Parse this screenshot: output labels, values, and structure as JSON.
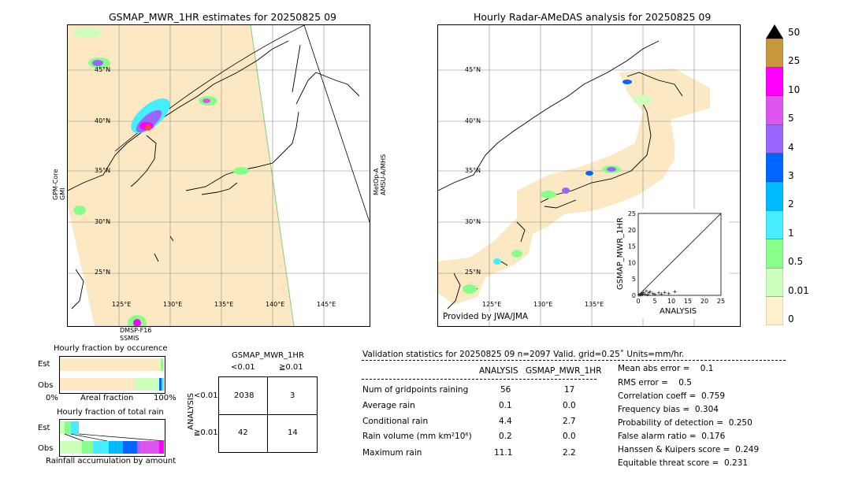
{
  "left_map": {
    "title": "GSMAP_MWR_1HR estimates for 20250825 09",
    "lat_labels": [
      "45°N",
      "40°N",
      "35°N",
      "30°N",
      "25°N"
    ],
    "lon_labels": [
      "125°E",
      "130°E",
      "135°E",
      "140°E",
      "145°E"
    ],
    "left_sensor": "GPM-Core\nGMI",
    "right_sensor": "MetOp-A\nAMSU-A/MHS",
    "bottom_sensor": "DMSP-F16\nSSMIS"
  },
  "right_map": {
    "title": "Hourly Radar-AMeDAS analysis for 20250825 09",
    "lat_labels": [
      "45°N",
      "40°N",
      "35°N",
      "30°N",
      "25°N"
    ],
    "lon_labels": [
      "125°E",
      "130°E",
      "135°E"
    ],
    "credit": "Provided by JWA/JMA"
  },
  "colorbar": {
    "labels": [
      "50",
      "25",
      "10",
      "5",
      "4",
      "3",
      "2",
      "1",
      "0.5",
      "0.01",
      "0"
    ],
    "colors": [
      "#c8963c",
      "#ff00ff",
      "#dd55ee",
      "#9966ff",
      "#0066ff",
      "#00bbff",
      "#44eeff",
      "#88ff88",
      "#ccffbb",
      "#fff0cc"
    ]
  },
  "chart_data": [
    {
      "type": "scatter",
      "xlabel": "ANALYSIS",
      "ylabel": "GSMAP_MWR_1HR",
      "xlim": [
        0,
        25
      ],
      "ylim": [
        0,
        25
      ],
      "xticks": [
        "0",
        "5",
        "10",
        "15",
        "20",
        "25"
      ],
      "yticks": [
        "0",
        "5",
        "10",
        "15",
        "20",
        "25"
      ],
      "points": [
        [
          0.2,
          0.1
        ],
        [
          0.5,
          0.3
        ],
        [
          0.8,
          0.2
        ],
        [
          1.0,
          0.6
        ],
        [
          1.3,
          0.4
        ],
        [
          1.6,
          1.0
        ],
        [
          2.0,
          0.5
        ],
        [
          2.4,
          1.4
        ],
        [
          2.8,
          0.3
        ],
        [
          3.2,
          0.8
        ],
        [
          3.6,
          1.2
        ],
        [
          4.4,
          0.6
        ],
        [
          5.0,
          0.4
        ],
        [
          6.2,
          0.9
        ],
        [
          7.0,
          0.5
        ],
        [
          8.0,
          1.0
        ],
        [
          9.2,
          0.6
        ],
        [
          11.1,
          1.2
        ]
      ]
    },
    {
      "type": "bar",
      "title": "Hourly fraction by occurence",
      "rows": [
        "Est",
        "Obs"
      ],
      "xlabels": [
        "0%",
        "Areal fraction",
        "100%"
      ]
    },
    {
      "type": "bar",
      "title": "Hourly fraction of total rain",
      "rows": [
        "Est",
        "Obs"
      ],
      "xlabel": "Rainfall accumulation by amount"
    },
    {
      "type": "table",
      "title": "GSMAP_MWR_1HR",
      "col_headers": [
        "<0.01",
        "≧0.01"
      ],
      "row_headers": [
        "<0.01",
        "≧0.01"
      ],
      "side_label": "ANALYSIS",
      "cells": [
        [
          "2038",
          "3"
        ],
        [
          "42",
          "14"
        ]
      ]
    }
  ],
  "validation": {
    "header": "Validation statistics for 20250825 09  n=2097 Valid. grid=0.25˚ Units=mm/hr.",
    "col_analysis": "ANALYSIS",
    "col_gsmap": "GSMAP_MWR_1HR",
    "rows": [
      {
        "label": "Num of gridpoints raining",
        "analysis": "56",
        "gsmap": "17"
      },
      {
        "label": "Average rain",
        "analysis": "0.1",
        "gsmap": "0.0"
      },
      {
        "label": "Conditional rain",
        "analysis": "4.4",
        "gsmap": "2.7"
      },
      {
        "label": "Rain volume (mm km²10⁶)",
        "analysis": "0.2",
        "gsmap": "0.0"
      },
      {
        "label": "Maximum rain",
        "analysis": "11.1",
        "gsmap": "2.2"
      }
    ],
    "scores": [
      "Mean abs error =    0.1",
      "RMS error =    0.5",
      "Correlation coeff =  0.759",
      "Frequency bias =  0.304",
      "Probability of detection =  0.250",
      "False alarm ratio =  0.176",
      "Hanssen & Kuipers score =  0.249",
      "Equitable threat score =  0.231"
    ]
  }
}
